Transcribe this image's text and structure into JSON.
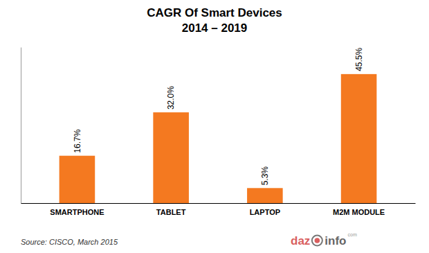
{
  "chart_data": {
    "type": "bar",
    "title": "CAGR Of Smart Devices\n2014 – 2019",
    "categories": [
      "SMARTPHONE",
      "TABLET",
      "LAPTOP",
      "M2M MODULE"
    ],
    "values": [
      16.7,
      32.0,
      5.3,
      45.5
    ],
    "value_labels": [
      "16.7%",
      "32.0%",
      "5.3%",
      "45.5%"
    ],
    "data_labels": true,
    "color": "#F47920",
    "ylim": [
      0,
      55
    ],
    "tick_labels": "x",
    "annotations": [
      "Source: CISCO, March 2015",
      "daz",
      "info",
      "com"
    ]
  }
}
